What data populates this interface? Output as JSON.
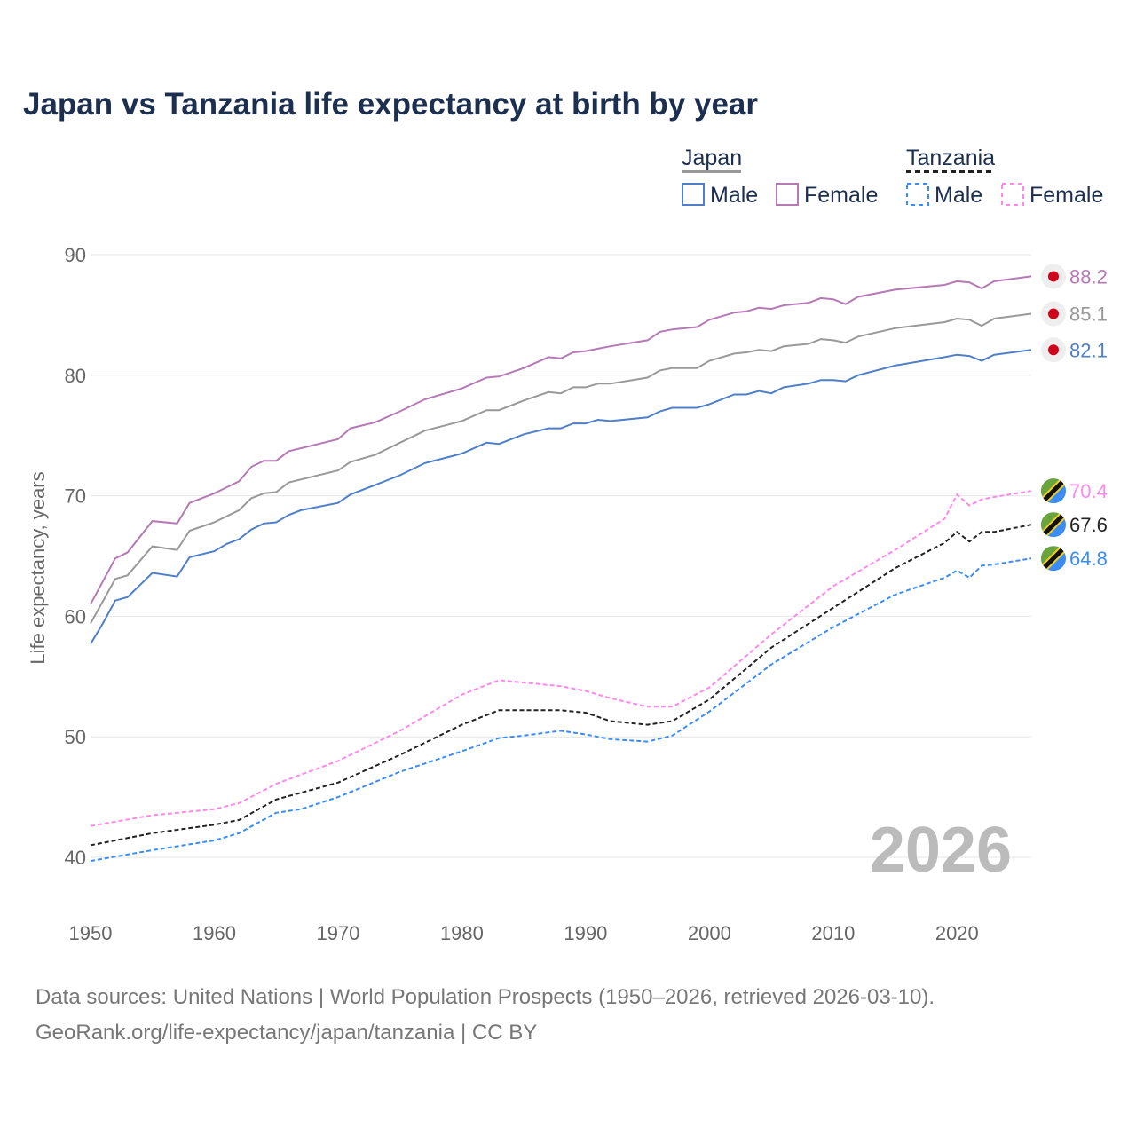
{
  "chart_data": {
    "type": "line",
    "title": "Japan vs Tanzania life expectancy at birth by year",
    "ylabel": "Life expectancy, years",
    "xlabel": "",
    "xlim": [
      1950,
      2026
    ],
    "ylim": [
      40,
      90
    ],
    "xticks": [
      "1950",
      "1960",
      "1970",
      "1980",
      "1990",
      "2000",
      "2010",
      "2020"
    ],
    "yticks": [
      "40",
      "50",
      "60",
      "70",
      "80",
      "90"
    ],
    "year_label": "2026",
    "legend": {
      "groups": [
        {
          "name": "Japan",
          "items": [
            "Male",
            "Female"
          ]
        },
        {
          "name": "Tanzania",
          "items": [
            "Male",
            "Female"
          ]
        }
      ],
      "placement": "top-right"
    },
    "series": [
      {
        "name": "Japan Female",
        "color": "#b57ab5",
        "dash": false,
        "end_label": "88.2",
        "flag": "japan",
        "x": [
          1950,
          1952,
          1953,
          1955,
          1957,
          1958,
          1960,
          1962,
          1963,
          1964,
          1965,
          1966,
          1970,
          1971,
          1973,
          1975,
          1977,
          1980,
          1982,
          1983,
          1985,
          1987,
          1988,
          1989,
          1990,
          1991,
          1992,
          1995,
          1996,
          1997,
          1999,
          2000,
          2002,
          2003,
          2004,
          2005,
          2006,
          2008,
          2009,
          2010,
          2011,
          2012,
          2015,
          2019,
          2020,
          2021,
          2022,
          2023,
          2026
        ],
        "y": [
          61.0,
          64.8,
          65.3,
          67.9,
          67.7,
          69.4,
          70.2,
          71.2,
          72.4,
          72.9,
          72.9,
          73.7,
          74.7,
          75.6,
          76.1,
          77.0,
          78.0,
          78.9,
          79.8,
          79.9,
          80.6,
          81.5,
          81.4,
          81.9,
          82.0,
          82.2,
          82.4,
          82.9,
          83.6,
          83.8,
          84.0,
          84.6,
          85.2,
          85.3,
          85.6,
          85.5,
          85.8,
          86.0,
          86.4,
          86.3,
          85.9,
          86.5,
          87.1,
          87.5,
          87.8,
          87.7,
          87.2,
          87.8,
          88.2
        ]
      },
      {
        "name": "Japan",
        "color": "#999999",
        "dash": false,
        "end_label": "85.1",
        "flag": "japan",
        "x": [
          1950,
          1952,
          1953,
          1955,
          1957,
          1958,
          1960,
          1962,
          1963,
          1964,
          1965,
          1966,
          1970,
          1971,
          1973,
          1975,
          1977,
          1980,
          1982,
          1983,
          1985,
          1987,
          1988,
          1989,
          1990,
          1991,
          1992,
          1995,
          1996,
          1997,
          1999,
          2000,
          2002,
          2003,
          2004,
          2005,
          2006,
          2008,
          2009,
          2010,
          2011,
          2012,
          2015,
          2019,
          2020,
          2021,
          2022,
          2023,
          2026
        ],
        "y": [
          59.4,
          63.1,
          63.4,
          65.8,
          65.5,
          67.1,
          67.8,
          68.8,
          69.8,
          70.2,
          70.3,
          71.1,
          72.1,
          72.8,
          73.4,
          74.4,
          75.4,
          76.2,
          77.1,
          77.1,
          77.9,
          78.6,
          78.5,
          79.0,
          79.0,
          79.3,
          79.3,
          79.8,
          80.4,
          80.6,
          80.6,
          81.2,
          81.8,
          81.9,
          82.1,
          82.0,
          82.4,
          82.6,
          83.0,
          82.9,
          82.7,
          83.2,
          83.9,
          84.4,
          84.7,
          84.6,
          84.1,
          84.7,
          85.1
        ]
      },
      {
        "name": "Japan Male",
        "color": "#4f7fc9",
        "dash": false,
        "end_label": "82.1",
        "flag": "japan",
        "x": [
          1950,
          1951,
          1952,
          1953,
          1955,
          1957,
          1958,
          1960,
          1961,
          1962,
          1963,
          1964,
          1965,
          1966,
          1967,
          1970,
          1971,
          1973,
          1975,
          1977,
          1980,
          1982,
          1983,
          1985,
          1987,
          1988,
          1989,
          1990,
          1991,
          1992,
          1995,
          1996,
          1997,
          1999,
          2000,
          2002,
          2003,
          2004,
          2005,
          2006,
          2008,
          2009,
          2010,
          2011,
          2012,
          2015,
          2019,
          2020,
          2021,
          2022,
          2023,
          2026
        ],
        "y": [
          57.7,
          59.4,
          61.3,
          61.6,
          63.6,
          63.3,
          64.9,
          65.4,
          66.0,
          66.4,
          67.2,
          67.7,
          67.8,
          68.4,
          68.8,
          69.4,
          70.1,
          70.9,
          71.7,
          72.7,
          73.5,
          74.4,
          74.3,
          75.1,
          75.6,
          75.6,
          76.0,
          76.0,
          76.3,
          76.2,
          76.5,
          77.0,
          77.3,
          77.3,
          77.6,
          78.4,
          78.4,
          78.7,
          78.5,
          79.0,
          79.3,
          79.6,
          79.6,
          79.5,
          80.0,
          80.8,
          81.5,
          81.7,
          81.6,
          81.2,
          81.7,
          82.1
        ]
      },
      {
        "name": "Tanzania Female",
        "color": "#ff88ee",
        "dash": true,
        "end_label": "70.4",
        "flag": "tanzania",
        "x": [
          1950,
          1955,
          1960,
          1962,
          1965,
          1970,
          1975,
          1980,
          1983,
          1985,
          1988,
          1990,
          1992,
          1995,
          1997,
          2000,
          2005,
          2010,
          2015,
          2019,
          2020,
          2021,
          2022,
          2023,
          2026
        ],
        "y": [
          42.6,
          43.5,
          44.0,
          44.5,
          46.1,
          48.0,
          50.5,
          53.5,
          54.7,
          54.5,
          54.2,
          53.8,
          53.2,
          52.5,
          52.5,
          54.1,
          58.5,
          62.5,
          65.5,
          68.1,
          70.1,
          69.2,
          69.7,
          69.9,
          70.4
        ]
      },
      {
        "name": "Tanzania",
        "color": "#222222",
        "dash": true,
        "end_label": "67.6",
        "flag": "tanzania",
        "x": [
          1950,
          1955,
          1960,
          1962,
          1965,
          1970,
          1975,
          1980,
          1983,
          1985,
          1988,
          1990,
          1992,
          1995,
          1997,
          2000,
          2005,
          2010,
          2015,
          2019,
          2020,
          2021,
          2022,
          2023,
          2026
        ],
        "y": [
          41.0,
          42.0,
          42.7,
          43.1,
          44.8,
          46.2,
          48.5,
          51.0,
          52.2,
          52.2,
          52.2,
          52.0,
          51.3,
          51.0,
          51.3,
          53.1,
          57.4,
          60.7,
          64.0,
          66.1,
          67.0,
          66.2,
          67.0,
          67.0,
          67.6
        ]
      },
      {
        "name": "Tanzania Male",
        "color": "#3b8cf5",
        "dash": true,
        "end_label": "64.8",
        "flag": "tanzania",
        "x": [
          1950,
          1955,
          1960,
          1962,
          1965,
          1967,
          1970,
          1975,
          1980,
          1983,
          1985,
          1988,
          1990,
          1992,
          1995,
          1997,
          2000,
          2005,
          2010,
          2015,
          2019,
          2020,
          2021,
          2022,
          2023,
          2026
        ],
        "y": [
          39.7,
          40.6,
          41.4,
          42.0,
          43.7,
          44.0,
          45.0,
          47.1,
          48.8,
          49.9,
          50.1,
          50.5,
          50.2,
          49.8,
          49.6,
          50.1,
          52.1,
          56.0,
          59.1,
          61.8,
          63.2,
          63.8,
          63.2,
          64.2,
          64.3,
          64.8
        ]
      }
    ]
  },
  "footer": {
    "line1": "Data sources: United Nations | World Population Prospects (1950–2026, retrieved 2026-03-10).",
    "line2": "GeoRank.org/life-expectancy/japan/tanzania | CC BY"
  }
}
